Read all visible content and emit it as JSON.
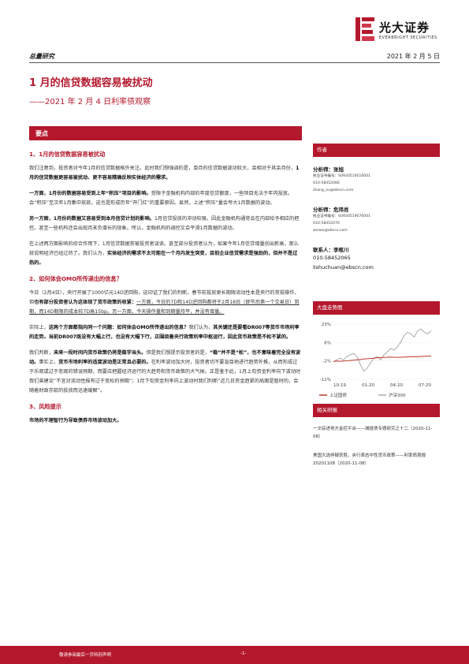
{
  "header": {
    "brand_cn": "光大证券",
    "brand_en": "EVERBRIGHT SECURITIES",
    "category": "总量研究",
    "date": "2021 年 2 月 5 日"
  },
  "title": "1 月的信贷数据容易被扰动",
  "subtitle": "——2021 年 2 月 4 日利率债观察",
  "key_points_label": "要点",
  "section1": {
    "heading": "1、1月的信贷数据容易被扰动",
    "p1_a": "我们注意到，投资者对今年1月的信贷数据格外关注。此时我们想强调的是，单月的信贷数据波动较大，且相对于其余月份，",
    "p1_b": "1月的信贷数据更容易被扰动、更不容易精确反映实体经济的需求。",
    "p2_a": "一方面，1月份的数据容易受到上年“积压”项目的影响。",
    "p2_b": "受限于金融机构内部的年度信贷额度，一些项目无法于年内投放。会“积压”至次年1月集中放款，这也是形成历年“开门红”的重要原因。显然，上述“积压”量会夸大1月数据的波动。",
    "p3_a": "另一方面，1月份的数据又容易受到本月信贷计划的影响。",
    "p3_b": "1月信贷投放的冲动较强，因此金融机构通常会在内部给予相应的把控。甚至一些机构还会出现月末负增长的现象。所以，金融机构的调控又会平滑1月数据的波动。",
    "p4_a": "在上述两方面影响的综合作用下，1月信贷数据常被投资者误读。甚至部分投资者认为，如果今年1月信贷增量创出新高，那么就说明经济已经过热了。我们认为，",
    "p4_b": "实体经济的需求不太可能在一个月内发生突变，目前企业信贷需求是强劲的，但并不是过热的。"
  },
  "section2": {
    "heading": "2、如何体会OMO所传递出的信息？",
    "p1_a": "今日（2月4日），央行开展了1000亿元14D逆回购，这印证了我们的判断。春节前投放更长期限流动性本是央行的常规操作，但",
    "p1_b": "也有部分投资者认为这体现了货币政策的收紧：",
    "p1_c": "一方面，今日的7D和14D逆回购都将于2月18日（即节后第一个交易日）到期，而14D期限的成本较7D高15bp。",
    "p1_d": "另一方面，今天操作量和到期量持平，并没有增量。",
    "p2_a": "实际上，",
    "p2_b": "这两个方面都指向同一个问题：如何体会OMO所传递出的信息？",
    "p2_c": "我们认为，",
    "p2_d": "其关键还是要看DR007等货币市场利率的走势。当前DR007既没有大幅上行，也没有大幅下行，正围绕着央行政策利率中枢运行，因此货币政策是不松不紧的。",
    "p3_a": "我们判断，",
    "p3_b": "未来一段时间内货币政策仍将是稳字当头。",
    "p3_c": "但是我们想提示投资者的是，",
    "p3_d": "“稳”并不是“松”，也不意味着完全没有波动。",
    "p3_e": "事实上，",
    "p3_f": "货币市场利率的适度波动是正常且必要的。",
    "p3_g": "在利率波动加大时，投资者切不要盲目地进行趋势外推，从而形成过于乐观或过于悲观的错误预期，而要应把握经济运行的大趋势和货币政策的大气候。正是鉴于此，1月上旬资金利率向下波动时我们曾建议“不宜对流动性报有过于宽松的预期”；1月下旬资金利率向上波动时我们判断“近几日资金趋紧的局面是暂时的，会随着财政存款的投放而迅速缓解”。"
  },
  "section3": {
    "heading": "3、风险提示",
    "p1": "市场的不理智行为导致债券市场波动加大。"
  },
  "sidebar": {
    "authors_label": "作者",
    "analyst1": {
      "label": "分析师：张旭",
      "cert": "执业证书编号：S0930516010001",
      "phone": "010-58452066",
      "email": "zhang_xu@ebscn.com"
    },
    "analyst2": {
      "label": "分析师：危玮肖",
      "cert": "执业证书编号：S0930519070001",
      "phone": "010-58452070",
      "email": "weiwx@ebscn.com"
    },
    "contact": {
      "label": "联系人：李枢川",
      "phone": "010-58452065",
      "email": "lishuchuan@ebscn.com"
    },
    "chart_title": "大盘走势图",
    "reports_label": "相关研报",
    "reports": [
      "一文综述地方金控平台——城投债专题研究之十二（2020-11-08）",
      "美国大选祥疑获胜，央行表态中性货币政策——利率债周报 20201108（2020-11-08）"
    ]
  },
  "chart_data": {
    "type": "line",
    "title": "大盘走势图",
    "x_ticks": [
      "10-19",
      "01-20",
      "04-20",
      "07-20"
    ],
    "y_ticks": [
      "23%",
      "6%",
      "-2%",
      "-11%"
    ],
    "ylim": [
      -11,
      23
    ],
    "series": [
      {
        "name": "上证国债",
        "color": "#c0392b",
        "values": [
          0,
          0.2,
          0.1,
          0.3,
          0.4,
          0.6,
          0.8,
          1.0,
          1.2,
          1.5,
          1.7,
          1.8,
          2.0,
          2.2,
          2.4,
          2.5,
          2.6,
          2.7,
          2.6,
          2.5,
          2.6,
          2.7,
          2.8,
          2.9,
          3.0,
          2.9,
          3.1,
          3.2,
          3.3,
          3.4
        ]
      },
      {
        "name": "沪深300",
        "color": "#aaaaaa",
        "values": [
          0,
          1,
          2,
          1,
          3,
          4,
          5,
          3,
          -2,
          -6,
          -4,
          -1,
          2,
          3,
          1,
          4,
          6,
          8,
          7,
          9,
          12,
          16,
          18,
          17,
          15,
          19,
          20,
          18,
          17,
          19
        ]
      }
    ]
  },
  "footer": {
    "disclaimer": "敬请参阅最后一页特别声明",
    "page": "-1-"
  }
}
